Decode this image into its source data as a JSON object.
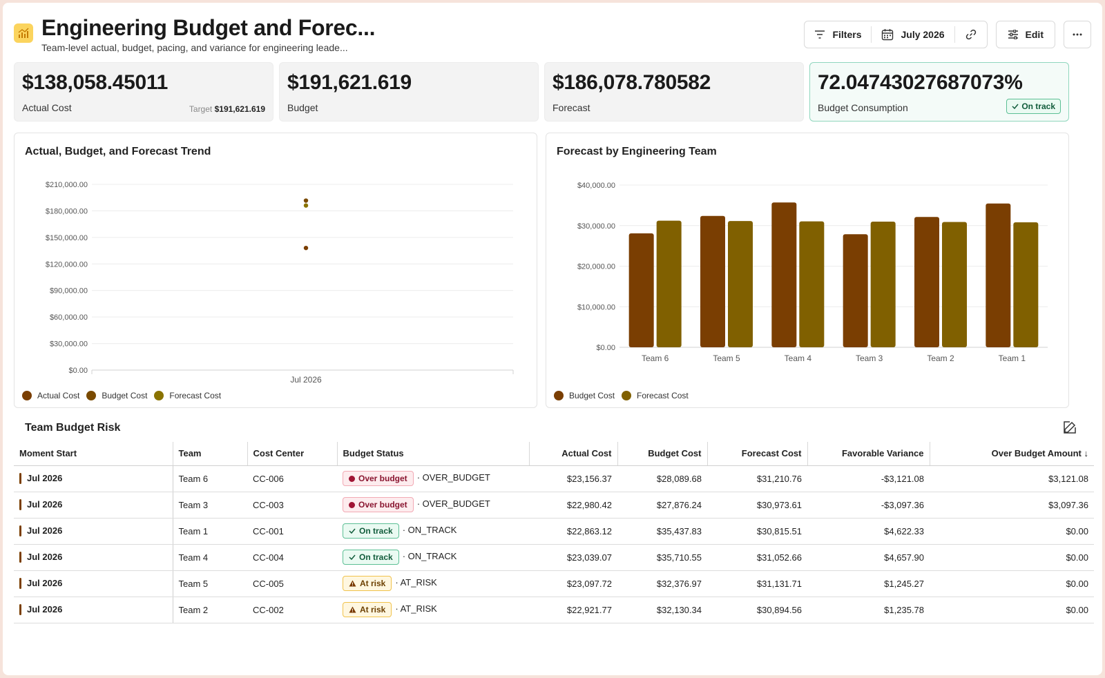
{
  "header": {
    "title": "Engineering Budget and Forec...",
    "subtitle": "Team-level actual, budget, pacing, and variance for engineering leade...",
    "filters_label": "Filters",
    "date_label": "July 2026",
    "edit_label": "Edit"
  },
  "kpis": {
    "actual": {
      "value": "$138,058.45011",
      "label": "Actual Cost",
      "target_prefix": "Target",
      "target_value": "$191,621.619"
    },
    "budget": {
      "value": "$191,621.619",
      "label": "Budget"
    },
    "forecast": {
      "value": "$186,078.780582",
      "label": "Forecast"
    },
    "consumption": {
      "value": "72.04743027687073%",
      "label": "Budget Consumption",
      "badge": "On track"
    }
  },
  "colors": {
    "actual": "#7a3e02",
    "budget": "#7a4a00",
    "forecast": "#8a7300",
    "bar_budget": "#7a3e02",
    "bar_forecast": "#806000"
  },
  "trend_panel": {
    "title": "Actual, Budget, and Forecast Trend",
    "legend": [
      "Actual Cost",
      "Budget Cost",
      "Forecast Cost"
    ]
  },
  "team_panel": {
    "title": "Forecast by Engineering Team",
    "legend": [
      "Budget Cost",
      "Forecast Cost"
    ]
  },
  "chart_data": [
    {
      "type": "scatter",
      "title": "Actual, Budget, and Forecast Trend",
      "x": [
        "Jul 2026"
      ],
      "y_ticks": [
        "$0.00",
        "$30,000.00",
        "$60,000.00",
        "$90,000.00",
        "$120,000.00",
        "$150,000.00",
        "$180,000.00",
        "$210,000.00"
      ],
      "ylim": [
        0,
        210000
      ],
      "series": [
        {
          "name": "Actual Cost",
          "values": [
            138058.45
          ]
        },
        {
          "name": "Budget Cost",
          "values": [
            191621.62
          ]
        },
        {
          "name": "Forecast Cost",
          "values": [
            186078.78
          ]
        }
      ],
      "grid": true,
      "legend": "bottom-left"
    },
    {
      "type": "bar",
      "title": "Forecast by Engineering Team",
      "categories": [
        "Team 6",
        "Team 5",
        "Team 4",
        "Team 3",
        "Team 2",
        "Team 1"
      ],
      "y_ticks": [
        "$0.00",
        "$10,000.00",
        "$20,000.00",
        "$30,000.00",
        "$40,000.00"
      ],
      "ylim": [
        0,
        40000
      ],
      "series": [
        {
          "name": "Budget Cost",
          "values": [
            28089.68,
            32376.97,
            35710.55,
            27876.24,
            32130.34,
            35437.83
          ]
        },
        {
          "name": "Forecast Cost",
          "values": [
            31210.76,
            31131.71,
            31052.66,
            30973.61,
            30894.56,
            30815.51
          ]
        }
      ],
      "grid": true,
      "legend": "bottom-left"
    }
  ],
  "table": {
    "title": "Team Budget Risk",
    "columns": [
      "Moment Start",
      "Team",
      "Cost Center",
      "Budget Status",
      "Actual Cost",
      "Budget Cost",
      "Forecast Cost",
      "Favorable Variance",
      "Over Budget Amount"
    ],
    "sort_indicator": "↓",
    "rows": [
      {
        "moment": "Jul 2026",
        "team": "Team 6",
        "cc": "CC-006",
        "status": "Over budget",
        "status_kind": "over",
        "code": "· OVER_BUDGET",
        "actual": "$23,156.37",
        "budget": "$28,089.68",
        "forecast": "$31,210.76",
        "variance": "-$3,121.08",
        "over": "$3,121.08"
      },
      {
        "moment": "Jul 2026",
        "team": "Team 3",
        "cc": "CC-003",
        "status": "Over budget",
        "status_kind": "over",
        "code": "· OVER_BUDGET",
        "actual": "$22,980.42",
        "budget": "$27,876.24",
        "forecast": "$30,973.61",
        "variance": "-$3,097.36",
        "over": "$3,097.36"
      },
      {
        "moment": "Jul 2026",
        "team": "Team 1",
        "cc": "CC-001",
        "status": "On track",
        "status_kind": "ok",
        "code": "· ON_TRACK",
        "actual": "$22,863.12",
        "budget": "$35,437.83",
        "forecast": "$30,815.51",
        "variance": "$4,622.33",
        "over": "$0.00"
      },
      {
        "moment": "Jul 2026",
        "team": "Team 4",
        "cc": "CC-004",
        "status": "On track",
        "status_kind": "ok",
        "code": "· ON_TRACK",
        "actual": "$23,039.07",
        "budget": "$35,710.55",
        "forecast": "$31,052.66",
        "variance": "$4,657.90",
        "over": "$0.00"
      },
      {
        "moment": "Jul 2026",
        "team": "Team 5",
        "cc": "CC-005",
        "status": "At risk",
        "status_kind": "risk",
        "code": "· AT_RISK",
        "actual": "$23,097.72",
        "budget": "$32,376.97",
        "forecast": "$31,131.71",
        "variance": "$1,245.27",
        "over": "$0.00"
      },
      {
        "moment": "Jul 2026",
        "team": "Team 2",
        "cc": "CC-002",
        "status": "At risk",
        "status_kind": "risk",
        "code": "· AT_RISK",
        "actual": "$22,921.77",
        "budget": "$32,130.34",
        "forecast": "$30,894.56",
        "variance": "$1,235.78",
        "over": "$0.00"
      }
    ]
  }
}
